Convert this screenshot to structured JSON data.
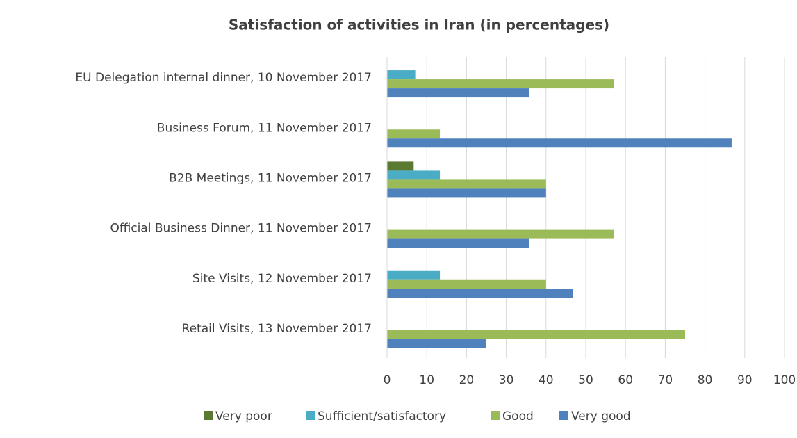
{
  "chart_data": {
    "type": "hbar",
    "title": "Satisfaction of activities in Iran (in percentages)",
    "categories": [
      "EU Delegation internal dinner, 10 November 2017",
      "Business Forum, 11 November 2017",
      "B2B Meetings, 11 November 2017",
      "Official Business Dinner, 11 November 2017",
      "Site Visits, 12 November 2017",
      "Retail Visits, 13 November 2017"
    ],
    "series": [
      {
        "name": "Very poor",
        "color": "#5a7a32",
        "values": [
          0,
          0,
          6.7,
          0,
          0,
          0
        ]
      },
      {
        "name": "Sufficient/satisfactory",
        "color": "#4bacc6",
        "values": [
          7.1,
          0,
          13.3,
          0,
          13.3,
          0
        ]
      },
      {
        "name": "Good",
        "color": "#9bbb59",
        "values": [
          57.1,
          13.3,
          40,
          57.1,
          40,
          75
        ]
      },
      {
        "name": "Very good",
        "color": "#4f81bd",
        "values": [
          35.7,
          86.7,
          40,
          35.7,
          46.7,
          25
        ]
      }
    ],
    "xlim": [
      0,
      100
    ],
    "xticks": [
      0,
      10,
      20,
      30,
      40,
      50,
      60,
      70,
      80,
      90,
      100
    ],
    "grid": true,
    "legend": "bottom"
  }
}
